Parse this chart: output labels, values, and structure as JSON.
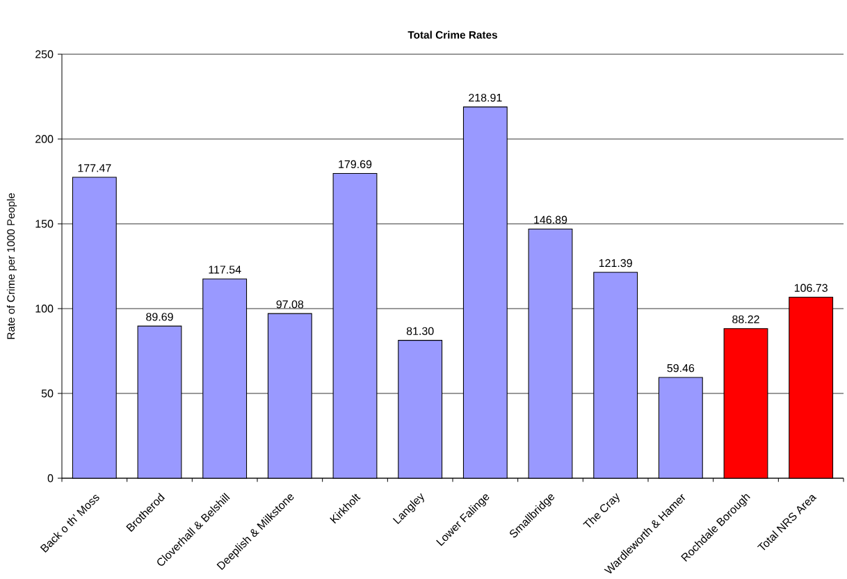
{
  "chart_data": {
    "type": "bar",
    "title": "Total Crime Rates",
    "ylabel": "Rate of Crime per 1000 People",
    "categories": [
      "Back o th' Moss",
      "Brotherod",
      "Cloverhall & Belshill",
      "Deeplish & Milkstone",
      "Kirkholt",
      "Langley",
      "Lower Falinge",
      "Smallbridge",
      "The Cray",
      "Wardleworth & Hamer",
      "Rochdale Borough",
      "Total NRS Area"
    ],
    "values": [
      177.47,
      89.69,
      117.54,
      97.08,
      179.69,
      81.3,
      218.91,
      146.89,
      121.39,
      59.46,
      88.22,
      106.73
    ],
    "value_labels": [
      "177.47",
      "89.69",
      "117.54",
      "97.08",
      "179.69",
      "81.30",
      "218.91",
      "146.89",
      "121.39",
      "59.46",
      "88.22",
      "106.73"
    ],
    "colors": [
      "#9999ff",
      "#9999ff",
      "#9999ff",
      "#9999ff",
      "#9999ff",
      "#9999ff",
      "#9999ff",
      "#9999ff",
      "#9999ff",
      "#9999ff",
      "#ff0000",
      "#ff0000"
    ],
    "ylim": [
      0,
      250
    ],
    "yticks": [
      0,
      50,
      100,
      150,
      200,
      250
    ],
    "grid": "y"
  }
}
